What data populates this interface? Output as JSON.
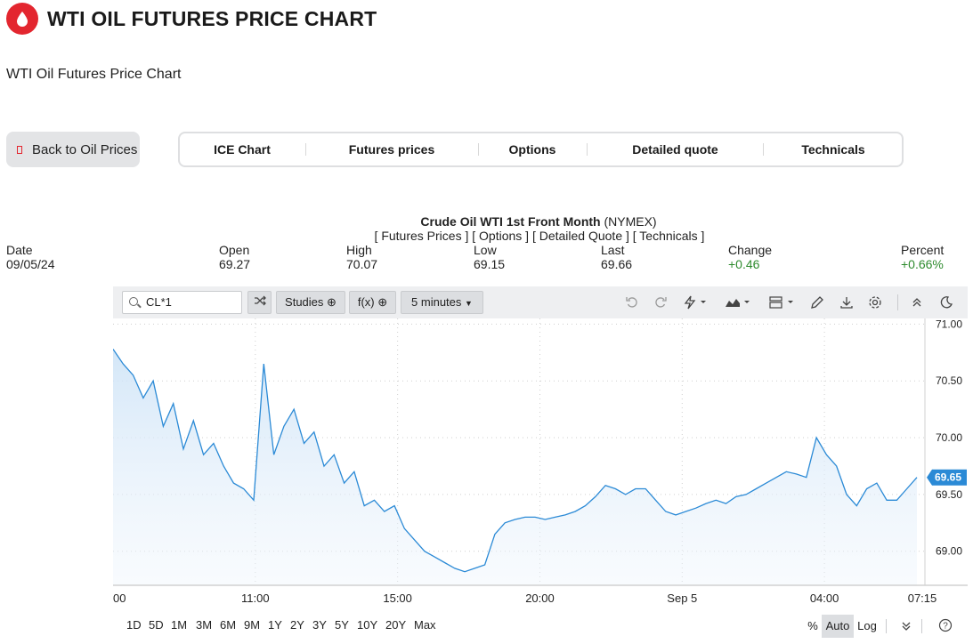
{
  "header": {
    "title": "WTI OIL FUTURES PRICE CHART",
    "subtitle": "WTI Oil Futures Price Chart",
    "logo": "oil-drop-icon",
    "brand_color": "#e3262f"
  },
  "nav": {
    "back_label": "Back to Oil Prices",
    "tabs": [
      "ICE Chart",
      "Futures prices",
      "Options",
      "Detailed quote",
      "Technicals"
    ]
  },
  "quote_header": {
    "title_bold": "Crude Oil WTI 1st Front Month",
    "title_exchange": " (NYMEX)",
    "links": "[ Futures Prices ] [ Options ] [ Detailed Quote ] [ Technicals ]",
    "fields": [
      {
        "label": "Date",
        "value": "09/05/24"
      },
      {
        "label": "Open",
        "value": "69.27"
      },
      {
        "label": "High",
        "value": "70.07"
      },
      {
        "label": "Low",
        "value": "69.15"
      },
      {
        "label": "Last",
        "value": "69.66"
      },
      {
        "label": "Change",
        "value": "+0.46",
        "color": "#2e8b2e"
      },
      {
        "label": "Percent",
        "value": "+0.66%",
        "color": "#2e8b2e"
      }
    ]
  },
  "toolbar": {
    "symbol": "CL*1",
    "studies_label": "Studies",
    "fx_label": "f(x)",
    "interval_label": "5 minutes",
    "icons": [
      "shuffle-icon",
      "undo-icon",
      "redo-icon",
      "lightning-icon",
      "area-chart-icon",
      "layout-icon",
      "pencil-icon",
      "download-icon",
      "gear-icon",
      "collapse-icon",
      "dark-mode-icon"
    ]
  },
  "chart_data": {
    "type": "area",
    "line_color": "#2b8ad6",
    "current_price_label": "69.65",
    "x_tick_labels": [
      "00",
      "11:00",
      "15:00",
      "20:00",
      "Sep 5",
      "04:00",
      "07:15"
    ],
    "y_tick_labels": [
      "71.00",
      "70.50",
      "70.00",
      "69.50",
      "69.00"
    ],
    "ylim": [
      68.7,
      71.05
    ],
    "grid": true,
    "values": [
      70.78,
      70.65,
      70.55,
      70.35,
      70.5,
      70.1,
      70.3,
      69.9,
      70.15,
      69.85,
      69.95,
      69.75,
      69.6,
      69.55,
      69.45,
      70.65,
      69.85,
      70.1,
      70.25,
      69.95,
      70.05,
      69.75,
      69.85,
      69.6,
      69.7,
      69.4,
      69.45,
      69.35,
      69.4,
      69.2,
      69.1,
      69.0,
      68.95,
      68.9,
      68.85,
      68.82,
      68.85,
      68.88,
      69.15,
      69.25,
      69.28,
      69.3,
      69.3,
      69.28,
      69.3,
      69.32,
      69.35,
      69.4,
      69.48,
      69.58,
      69.55,
      69.5,
      69.55,
      69.55,
      69.45,
      69.35,
      69.32,
      69.35,
      69.38,
      69.42,
      69.45,
      69.42,
      69.48,
      69.5,
      69.55,
      69.6,
      69.65,
      69.7,
      69.68,
      69.65,
      70.0,
      69.85,
      69.75,
      69.5,
      69.4,
      69.55,
      69.6,
      69.45,
      69.45,
      69.55,
      69.65
    ]
  },
  "bottom_bar": {
    "ranges": [
      "1D",
      "5D",
      "1M",
      "3M",
      "6M",
      "9M",
      "1Y",
      "2Y",
      "3Y",
      "5Y",
      "10Y",
      "20Y",
      "Max"
    ],
    "scale": [
      "%",
      "Auto",
      "Log"
    ],
    "active_scale": "Auto",
    "icons": [
      "double-chevron-down-icon",
      "help-icon"
    ]
  }
}
